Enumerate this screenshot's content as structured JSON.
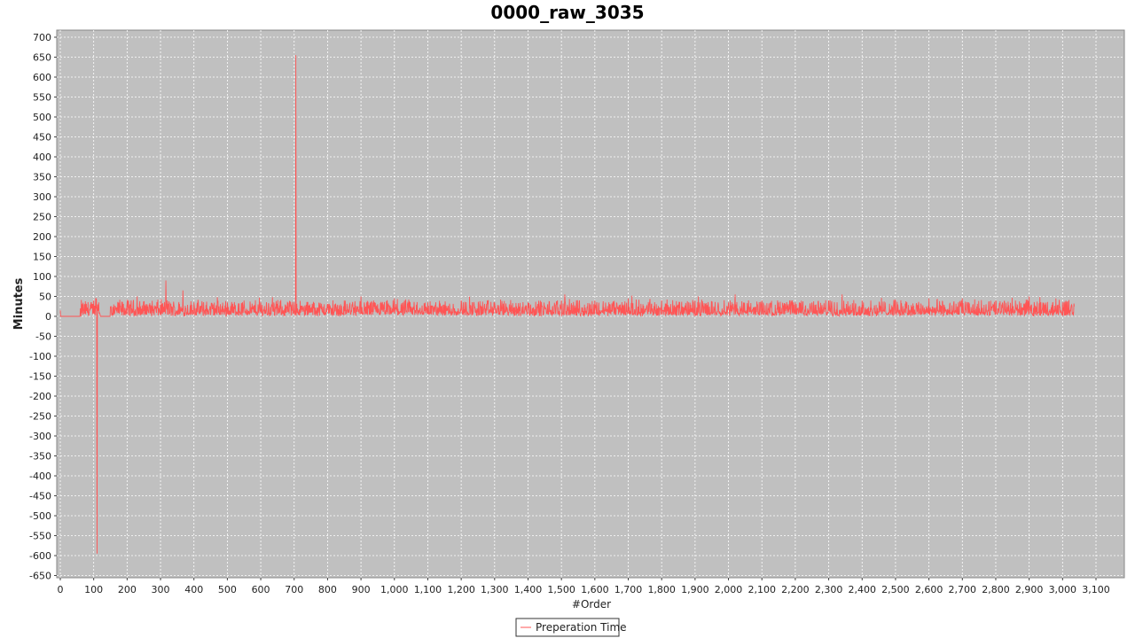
{
  "chart_data": {
    "type": "line",
    "title": "0000_raw_3035",
    "xlabel": "#Order",
    "ylabel": "Minutes",
    "xlim": [
      0,
      3200
    ],
    "ylim": [
      -660,
      710
    ],
    "x_ticks": [
      0,
      100,
      200,
      300,
      400,
      500,
      600,
      700,
      800,
      900,
      1000,
      1100,
      1200,
      1300,
      1400,
      1500,
      1600,
      1700,
      1800,
      1900,
      2000,
      2100,
      2200,
      2300,
      2400,
      2500,
      2600,
      2700,
      2800,
      2900,
      3000,
      3100
    ],
    "x_tick_labels": [
      "0",
      "100",
      "200",
      "300",
      "400",
      "500",
      "600",
      "700",
      "800",
      "900",
      "1,000",
      "1,100",
      "1,200",
      "1,300",
      "1,400",
      "1,500",
      "1,600",
      "1,700",
      "1,800",
      "1,900",
      "2,000",
      "2,100",
      "2,200",
      "2,300",
      "2,400",
      "2,500",
      "2,600",
      "2,700",
      "2,800",
      "2,900",
      "3,000",
      "3,100"
    ],
    "y_ticks": [
      -650,
      -600,
      -550,
      -500,
      -450,
      -400,
      -350,
      -300,
      -250,
      -200,
      -150,
      -100,
      -50,
      0,
      50,
      100,
      150,
      200,
      250,
      300,
      350,
      400,
      450,
      500,
      550,
      600,
      650,
      700
    ],
    "grid": true,
    "legend_position": "bottom-center",
    "background_color": "#c0c0c0",
    "series": [
      {
        "name": "Preperation Time",
        "color": "#ff5555",
        "n_points": 3035,
        "x": [
          0,
          5,
          10,
          60,
          62,
          70,
          80,
          90,
          100,
          105,
          108,
          110,
          112,
          115,
          120,
          140,
          150,
          160,
          200,
          230,
          260,
          290,
          316,
          320,
          340,
          367,
          400,
          470,
          500,
          600,
          635,
          640,
          650,
          700,
          705,
          707,
          710,
          800,
          900,
          1000,
          1020,
          1100,
          1200,
          1300,
          1400,
          1500,
          1510,
          1600,
          1700,
          1800,
          1900,
          1910,
          2000,
          2020,
          2100,
          2200,
          2300,
          2340,
          2400,
          2500,
          2600,
          2700,
          2800,
          2900,
          2980,
          3000,
          3035
        ],
        "y": [
          15,
          0,
          0,
          20,
          0,
          18,
          22,
          30,
          40,
          15,
          45,
          -595,
          30,
          35,
          0,
          0,
          25,
          30,
          35,
          50,
          30,
          35,
          90,
          40,
          30,
          65,
          35,
          48,
          35,
          35,
          48,
          30,
          20,
          35,
          655,
          30,
          20,
          30,
          50,
          45,
          30,
          35,
          40,
          35,
          35,
          40,
          55,
          40,
          45,
          40,
          40,
          50,
          35,
          55,
          40,
          35,
          40,
          55,
          40,
          40,
          45,
          45,
          40,
          50,
          45,
          35,
          25
        ],
        "dense_band_range": [
          0,
          40
        ]
      }
    ]
  }
}
